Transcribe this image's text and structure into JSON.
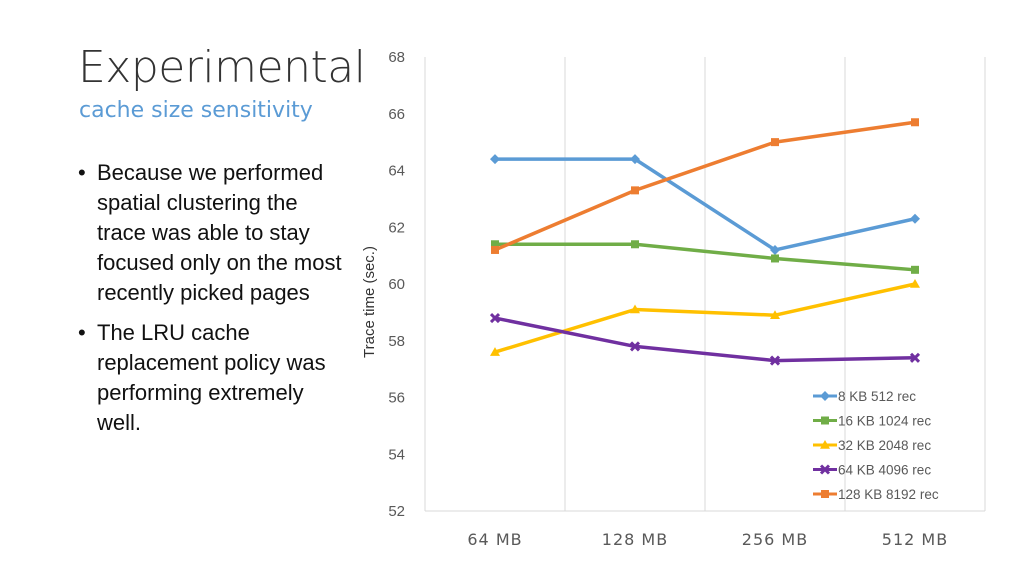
{
  "slide": {
    "title": "Experimental",
    "subtitle": "cache size sensitivity",
    "bullets": [
      "Because we performed spatial clustering the trace was able to stay focused only on the most recently picked pages",
      "The LRU cache replacement policy was performing extremely well."
    ],
    "bullet_glyph": "•"
  },
  "chart_data": {
    "type": "line",
    "categories": [
      "64 MB",
      "128 MB",
      "256 MB",
      "512 MB"
    ],
    "ylabel": "Trace time (sec.)",
    "xlabel": "",
    "ylim": [
      52,
      68
    ],
    "yticks": [
      52,
      54,
      56,
      58,
      60,
      62,
      64,
      66,
      68
    ],
    "grid": "vertical",
    "legend_position": "bottom-right",
    "series": [
      {
        "name": "8 KB 512 rec",
        "color": "#5b9bd5",
        "marker": "diamond",
        "values": [
          64.4,
          64.4,
          61.2,
          62.3
        ]
      },
      {
        "name": "16 KB 1024  rec",
        "color": "#70ad47",
        "marker": "square",
        "values": [
          61.4,
          61.4,
          60.9,
          60.5
        ]
      },
      {
        "name": "32 KB 2048  rec",
        "color": "#ffc000",
        "marker": "triangle",
        "values": [
          57.6,
          59.1,
          58.9,
          60.0
        ]
      },
      {
        "name": "64 KB 4096  rec",
        "color": "#7030a0",
        "marker": "x",
        "values": [
          58.8,
          57.8,
          57.3,
          57.4
        ]
      },
      {
        "name": "128 KB 8192  rec",
        "color": "#ed7d31",
        "marker": "square",
        "values": [
          61.2,
          63.3,
          65.0,
          65.7
        ]
      }
    ]
  }
}
